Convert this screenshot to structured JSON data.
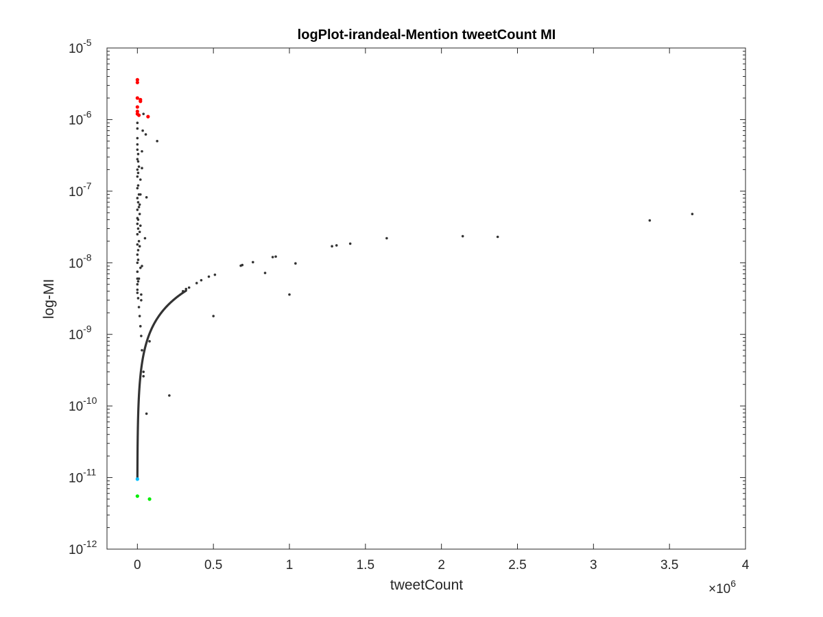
{
  "chart_data": {
    "type": "scatter",
    "title": "logPlot-irandeal-Mention tweetCount MI",
    "xlabel": "tweetCount",
    "ylabel": "log-MI",
    "x_multiplier_label": "×10",
    "x_multiplier_exponent": "6",
    "xlim": [
      -200000,
      4000000
    ],
    "ylim": [
      1e-12,
      1e-05
    ],
    "yscale": "log",
    "grid": false,
    "x_ticks": [
      "0",
      "0.5",
      "1",
      "1.5",
      "2",
      "2.5",
      "3",
      "3.5",
      "4"
    ],
    "x_tick_values": [
      0,
      500000,
      1000000,
      1500000,
      2000000,
      2500000,
      3000000,
      3500000,
      4000000
    ],
    "y_tick_exponents": [
      "-12",
      "-11",
      "-10",
      "-9",
      "-8",
      "-7",
      "-6",
      "-5"
    ],
    "y_tick_values": [
      1e-12,
      1e-11,
      1e-10,
      1e-09,
      1e-08,
      1e-07,
      1e-06,
      1e-05
    ],
    "y_tick_base": "10",
    "curve_formula": "y = 9.5e-12 + 1.27e-14 * x",
    "curve_x_range": [
      0,
      320000
    ],
    "colors": {
      "background": "#ffffff",
      "axes": "#262626",
      "main": "#333333",
      "red": "#ff0000",
      "green": "#00ee00",
      "cyan": "#00bfff"
    },
    "series": [
      {
        "color": "#333333",
        "points": [
          [
            3650000,
            4.8e-08
          ],
          [
            3370000,
            3.9e-08
          ],
          [
            2370000,
            2.3e-08
          ],
          [
            2140000,
            2.35e-08
          ],
          [
            1640000,
            2.2e-08
          ],
          [
            1400000,
            1.85e-08
          ],
          [
            1310000,
            1.75e-08
          ],
          [
            1280000,
            1.7e-08
          ],
          [
            1040000,
            9.8e-09
          ],
          [
            1000000,
            3.6e-09
          ],
          [
            910000,
            1.22e-08
          ],
          [
            890000,
            1.2e-08
          ],
          [
            840000,
            7.2e-09
          ],
          [
            760000,
            1.02e-08
          ],
          [
            690000,
            9.3e-09
          ],
          [
            680000,
            9.1e-09
          ],
          [
            510000,
            6.8e-09
          ],
          [
            500000,
            1.8e-09
          ],
          [
            470000,
            6.4e-09
          ],
          [
            420000,
            5.7e-09
          ],
          [
            390000,
            5.2e-09
          ],
          [
            340000,
            4.5e-09
          ],
          [
            320000,
            4.3e-09
          ],
          [
            300000,
            4e-09
          ],
          [
            210000,
            1.4e-10
          ],
          [
            130000,
            5e-07
          ],
          [
            80000,
            8e-10
          ],
          [
            60000,
            8.2e-08
          ],
          [
            55000,
            6.2e-07
          ],
          [
            60000,
            7.8e-11
          ],
          [
            50000,
            2.2e-08
          ],
          [
            40000,
            1.2e-06
          ],
          [
            35000,
            7e-07
          ],
          [
            30000,
            2.1e-07
          ],
          [
            30000,
            3.6e-07
          ],
          [
            30000,
            9e-09
          ],
          [
            40000,
            2.6e-10
          ],
          [
            40000,
            3e-10
          ],
          [
            30000,
            6e-10
          ],
          [
            20000,
            8.5e-09
          ],
          [
            20000,
            9e-08
          ],
          [
            20000,
            1.45e-07
          ],
          [
            20000,
            3.3e-08
          ],
          [
            25000,
            3e-09
          ],
          [
            25000,
            3.6e-09
          ],
          [
            15000,
            6.5e-08
          ],
          [
            15000,
            4.8e-08
          ],
          [
            15000,
            2.7e-08
          ],
          [
            15000,
            1.7e-08
          ],
          [
            10000,
            2.2e-07
          ],
          [
            10000,
            9e-08
          ],
          [
            10000,
            6e-08
          ],
          [
            10000,
            2e-08
          ],
          [
            10000,
            6e-09
          ],
          [
            5000,
            3.3e-07
          ],
          [
            5000,
            2.6e-07
          ],
          [
            5000,
            1.8e-07
          ],
          [
            5000,
            1.2e-07
          ],
          [
            5000,
            7e-08
          ],
          [
            5000,
            4e-08
          ],
          [
            5000,
            3e-08
          ],
          [
            5000,
            1.5e-08
          ],
          [
            5000,
            1.1e-08
          ],
          [
            5000,
            5.5e-09
          ],
          [
            0,
            9e-07
          ],
          [
            0,
            7.5e-07
          ],
          [
            0,
            5.5e-07
          ],
          [
            0,
            4.5e-07
          ],
          [
            0,
            3.8e-07
          ],
          [
            0,
            2.8e-07
          ],
          [
            0,
            2e-07
          ],
          [
            0,
            1.6e-07
          ],
          [
            0,
            1.1e-07
          ],
          [
            0,
            8e-08
          ],
          [
            0,
            5.5e-08
          ],
          [
            0,
            4.2e-08
          ],
          [
            0,
            3.5e-08
          ],
          [
            0,
            2.5e-08
          ],
          [
            0,
            1.8e-08
          ],
          [
            0,
            1.3e-08
          ],
          [
            0,
            1e-08
          ],
          [
            0,
            7.5e-09
          ],
          [
            0,
            6e-09
          ],
          [
            0,
            5e-09
          ],
          [
            0,
            4.2e-09
          ],
          [
            0,
            3.8e-09
          ],
          [
            5000,
            3.2e-09
          ],
          [
            10000,
            2.4e-09
          ],
          [
            15000,
            1.8e-09
          ],
          [
            20000,
            1.3e-09
          ],
          [
            25000,
            9.5e-10
          ]
        ]
      },
      {
        "color": "#ff0000",
        "points": [
          [
            0,
            3.6e-06
          ],
          [
            0,
            3.3e-06
          ],
          [
            0,
            2e-06
          ],
          [
            0,
            1.5e-06
          ],
          [
            0,
            1.3e-06
          ],
          [
            0,
            1.2e-06
          ],
          [
            10000,
            1.15e-06
          ],
          [
            20000,
            1.9e-06
          ],
          [
            20000,
            1.8e-06
          ],
          [
            70000,
            1.1e-06
          ]
        ]
      },
      {
        "color": "#00bfff",
        "points": [
          [
            0,
            9.5e-12
          ]
        ]
      },
      {
        "color": "#00ee00",
        "points": [
          [
            0,
            5.5e-12
          ],
          [
            80000,
            5e-12
          ]
        ]
      }
    ]
  }
}
